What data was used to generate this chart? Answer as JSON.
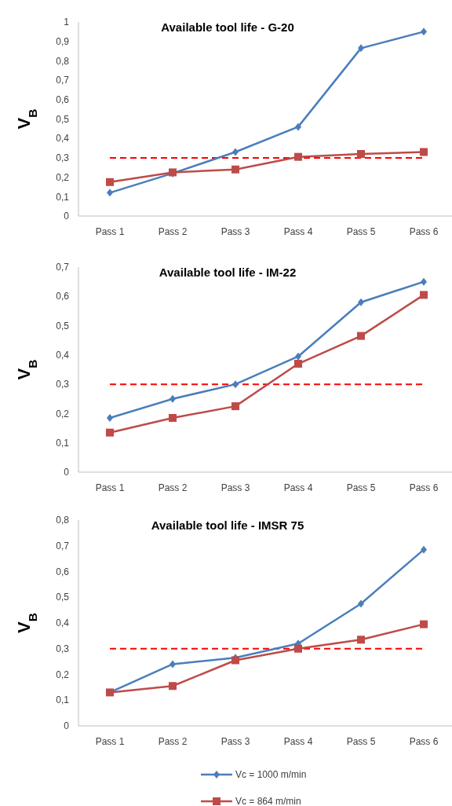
{
  "chart_data": [
    {
      "type": "line",
      "title": "Available tool life - G-20",
      "ylabel": "V$_{B}$",
      "categories": [
        "Pass 1",
        "Pass 2",
        "Pass 3",
        "Pass 4",
        "Pass 5",
        "Pass 6"
      ],
      "series": [
        {
          "color": "#4a7ebb",
          "marker": "diamond",
          "values": [
            0.12,
            0.22,
            0.33,
            0.46,
            0.865,
            0.95
          ]
        },
        {
          "color": "#be4b48",
          "marker": "square",
          "values": [
            0.175,
            0.225,
            0.24,
            0.305,
            0.32,
            0.33
          ]
        }
      ],
      "ylim": [
        0,
        1
      ],
      "yticks": [
        {
          "value": 0,
          "label": "0"
        },
        {
          "value": 0.1,
          "label": "0,1"
        },
        {
          "value": 0.2,
          "label": "0,2"
        },
        {
          "value": 0.3,
          "label": "0,3"
        },
        {
          "value": 0.4,
          "label": "0,4"
        },
        {
          "value": 0.5,
          "label": "0,5"
        },
        {
          "value": 0.6,
          "label": "0,6"
        },
        {
          "value": 0.7,
          "label": "0,7"
        },
        {
          "value": 0.8,
          "label": "0,8"
        },
        {
          "value": 0.9,
          "label": "0,9"
        },
        {
          "value": 1,
          "label": "1"
        }
      ],
      "ref_lines": [
        {
          "axis": "y",
          "value": 0.3,
          "color": "#ff0000",
          "line_style": "dashed"
        }
      ],
      "grid": false,
      "legend": false,
      "line_style": "solid"
    },
    {
      "type": "line",
      "title": "Available tool life - IM-22",
      "ylabel": "V$_{B}$",
      "categories": [
        "Pass 1",
        "Pass 2",
        "Pass 3",
        "Pass 4",
        "Pass 5",
        "Pass 6"
      ],
      "series": [
        {
          "color": "#4a7ebb",
          "marker": "diamond",
          "values": [
            0.185,
            0.25,
            0.3,
            0.395,
            0.58,
            0.65
          ]
        },
        {
          "color": "#be4b48",
          "marker": "square",
          "values": [
            0.135,
            0.185,
            0.225,
            0.37,
            0.465,
            0.605
          ]
        }
      ],
      "ylim": [
        0,
        0.7
      ],
      "yticks": [
        {
          "value": 0,
          "label": "0"
        },
        {
          "value": 0.1,
          "label": "0,1"
        },
        {
          "value": 0.2,
          "label": "0,2"
        },
        {
          "value": 0.3,
          "label": "0,3"
        },
        {
          "value": 0.4,
          "label": "0,4"
        },
        {
          "value": 0.5,
          "label": "0,5"
        },
        {
          "value": 0.6,
          "label": "0,6"
        },
        {
          "value": 0.7,
          "label": "0,7"
        }
      ],
      "ref_lines": [
        {
          "axis": "y",
          "value": 0.3,
          "color": "#ff0000",
          "line_style": "dashed"
        }
      ],
      "grid": false,
      "legend": false,
      "line_style": "solid"
    },
    {
      "type": "line",
      "title": "Available tool life - IMSR 75",
      "ylabel": "V$_{B}$",
      "categories": [
        "Pass 1",
        "Pass 2",
        "Pass 3",
        "Pass 4",
        "Pass 5",
        "Pass 6"
      ],
      "series": [
        {
          "name": "Vc = 1000 m/min",
          "color": "#4a7ebb",
          "marker": "diamond",
          "values": [
            0.13,
            0.24,
            0.265,
            0.32,
            0.475,
            0.685
          ]
        },
        {
          "name": "Vc = 864 m/min",
          "color": "#be4b48",
          "marker": "square",
          "values": [
            0.13,
            0.155,
            0.255,
            0.3,
            0.335,
            0.395
          ]
        }
      ],
      "ylim": [
        0,
        0.8
      ],
      "yticks": [
        {
          "value": 0,
          "label": "0"
        },
        {
          "value": 0.1,
          "label": "0,1"
        },
        {
          "value": 0.2,
          "label": "0,2"
        },
        {
          "value": 0.3,
          "label": "0,3"
        },
        {
          "value": 0.4,
          "label": "0,4"
        },
        {
          "value": 0.5,
          "label": "0,5"
        },
        {
          "value": 0.6,
          "label": "0,6"
        },
        {
          "value": 0.7,
          "label": "0,7"
        },
        {
          "value": 0.8,
          "label": "0,8"
        }
      ],
      "ref_lines": [
        {
          "axis": "y",
          "value": 0.3,
          "color": "#ff0000",
          "line_style": "dashed"
        }
      ],
      "grid": false,
      "legend": "bottom",
      "line_style": "solid"
    }
  ]
}
